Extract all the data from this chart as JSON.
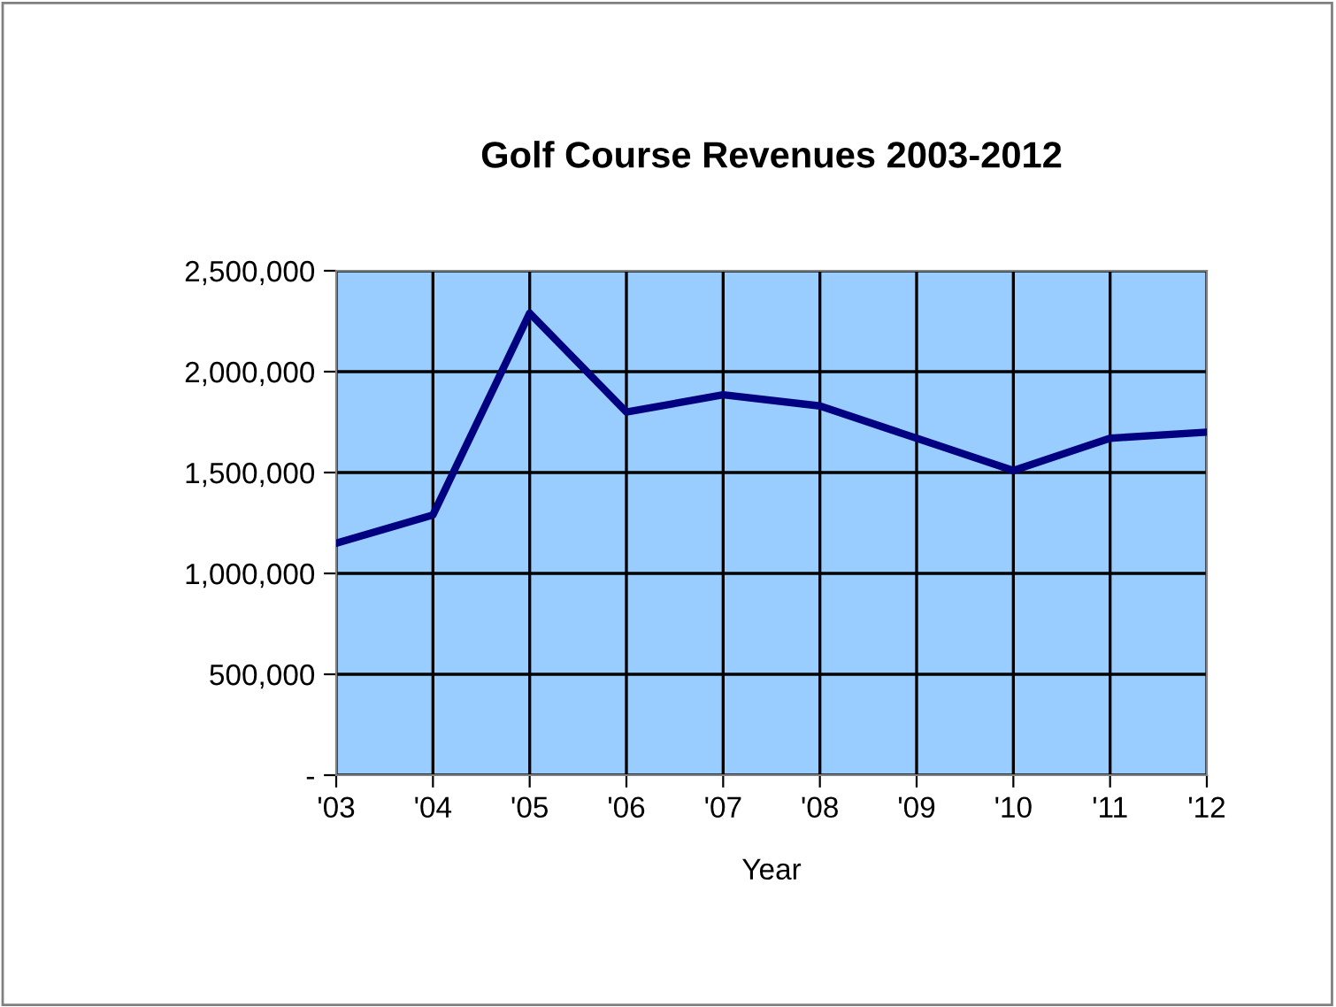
{
  "chart_data": {
    "type": "line",
    "title": "Golf Course Revenues 2003-2012",
    "xlabel": "Year",
    "categories": [
      "'03",
      "'04",
      "'05",
      "'06",
      "'07",
      "'08",
      "'09",
      "'10",
      "'11",
      "'12"
    ],
    "series": [
      {
        "color": "#000080",
        "values": [
          1150000,
          1290000,
          2290000,
          1800000,
          1885000,
          1830000,
          1670000,
          1510000,
          1670000,
          1700000
        ]
      }
    ],
    "ylim": [
      0,
      2500000
    ],
    "yticks": [
      {
        "value": 0,
        "label": "-"
      },
      {
        "value": 500000,
        "label": "500,000"
      },
      {
        "value": 1000000,
        "label": "1,000,000"
      },
      {
        "value": 1500000,
        "label": "1,500,000"
      },
      {
        "value": 2000000,
        "label": "2,000,000"
      },
      {
        "value": 2500000,
        "label": "2,500,000"
      }
    ],
    "grid": true,
    "marker": "none",
    "line_style": "solid"
  }
}
